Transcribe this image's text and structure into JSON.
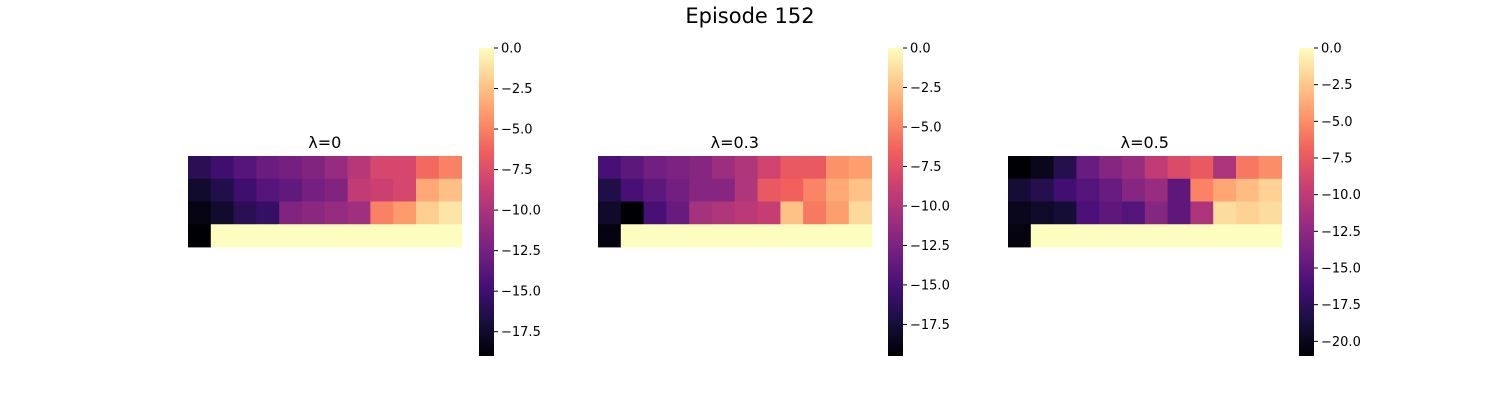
{
  "figure": {
    "title": "Episode 152"
  },
  "colormap": {
    "name": "magma",
    "stops": [
      "#000004",
      "#180f3d",
      "#440f76",
      "#721f81",
      "#9e2f7f",
      "#cd4071",
      "#f1605d",
      "#fd9668",
      "#feca8d",
      "#fcfdbf"
    ]
  },
  "chart_data": [
    {
      "type": "heatmap",
      "title": "λ=0",
      "rows": 4,
      "cols": 12,
      "values": [
        [
          -16.0,
          -15.0,
          -14.0,
          -13.0,
          -12.5,
          -12.0,
          -11.0,
          -9.5,
          -8.0,
          -8.0,
          -6.0,
          -5.0
        ],
        [
          -17.5,
          -16.5,
          -15.0,
          -14.0,
          -13.5,
          -12.5,
          -12.0,
          -9.0,
          -8.5,
          -8.0,
          -3.5,
          -2.5
        ],
        [
          -18.5,
          -17.5,
          -16.0,
          -15.5,
          -12.0,
          -11.5,
          -11.0,
          -10.5,
          -5.0,
          -4.0,
          -2.0,
          -1.0
        ],
        [
          -19.0,
          0.0,
          0.0,
          0.0,
          0.0,
          0.0,
          0.0,
          0.0,
          0.0,
          0.0,
          0.0,
          0.0
        ]
      ],
      "colorbar": {
        "vmin": -19.0,
        "vmax": 0.0,
        "ticks": [
          "0.0",
          "−2.5",
          "−5.0",
          "−7.5",
          "−10.0",
          "−12.5",
          "−15.0",
          "−17.5"
        ]
      }
    },
    {
      "type": "heatmap",
      "title": "λ=0.3",
      "rows": 4,
      "cols": 12,
      "values": [
        [
          -15.0,
          -14.0,
          -13.0,
          -12.5,
          -12.0,
          -11.0,
          -10.0,
          -8.5,
          -7.0,
          -7.0,
          -4.5,
          -4.0
        ],
        [
          -17.0,
          -15.0,
          -14.0,
          -13.0,
          -12.0,
          -12.0,
          -10.0,
          -7.0,
          -6.5,
          -5.0,
          -3.5,
          -2.5
        ],
        [
          -18.0,
          -19.5,
          -15.0,
          -13.5,
          -10.5,
          -10.0,
          -9.5,
          -9.0,
          -2.5,
          -5.5,
          -4.0,
          -1.5
        ],
        [
          -19.0,
          0.0,
          0.0,
          0.0,
          0.0,
          0.0,
          0.0,
          0.0,
          0.0,
          0.0,
          0.0,
          0.0
        ]
      ],
      "colorbar": {
        "vmin": -19.5,
        "vmax": 0.0,
        "ticks": [
          "0.0",
          "−2.5",
          "−5.0",
          "−7.5",
          "−10.0",
          "−12.5",
          "−15.0",
          "−17.5"
        ]
      }
    },
    {
      "type": "heatmap",
      "title": "λ=0.5",
      "rows": 4,
      "cols": 12,
      "values": [
        [
          -21.0,
          -20.0,
          -18.0,
          -14.5,
          -13.0,
          -12.0,
          -10.0,
          -8.5,
          -7.5,
          -11.0,
          -6.0,
          -5.0
        ],
        [
          -19.0,
          -18.0,
          -16.5,
          -15.5,
          -14.5,
          -13.0,
          -12.0,
          -15.0,
          -5.5,
          -4.0,
          -3.0,
          -2.0
        ],
        [
          -20.0,
          -19.5,
          -19.0,
          -16.0,
          -15.0,
          -15.5,
          -13.0,
          -15.0,
          -11.0,
          -1.5,
          -2.0,
          -1.5
        ],
        [
          -20.5,
          0.0,
          0.0,
          0.0,
          0.0,
          0.0,
          0.0,
          0.0,
          0.0,
          0.0,
          0.0,
          0.0
        ]
      ],
      "colorbar": {
        "vmin": -21.0,
        "vmax": 0.0,
        "ticks": [
          "0.0",
          "−2.5",
          "−5.0",
          "−7.5",
          "−10.0",
          "−12.5",
          "−15.0",
          "−17.5",
          "−20.0"
        ]
      }
    }
  ]
}
